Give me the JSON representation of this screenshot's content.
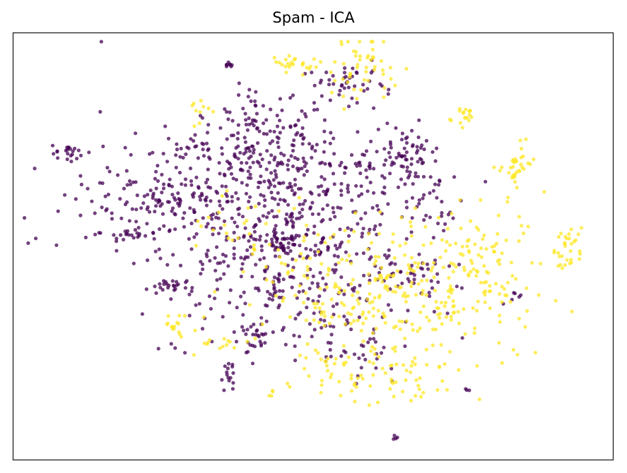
{
  "chart_data": {
    "type": "scatter",
    "title": "Spam - ICA",
    "xlabel": "",
    "ylabel": "",
    "grid": false,
    "axis_ticks": false,
    "colors": {
      "class_0": "#440154",
      "class_1": "#fde725"
    },
    "point_alpha": 0.75,
    "clusters": [
      {
        "cls": 0,
        "x": 0.33,
        "y": 0.39,
        "sx": 0.12,
        "sy": 0.09,
        "n": 280
      },
      {
        "cls": 0,
        "x": 0.51,
        "y": 0.46,
        "sx": 0.1,
        "sy": 0.1,
        "n": 230
      },
      {
        "cls": 0,
        "x": 0.45,
        "y": 0.61,
        "sx": 0.1,
        "sy": 0.08,
        "n": 170
      },
      {
        "cls": 0,
        "x": 0.42,
        "y": 0.28,
        "sx": 0.06,
        "sy": 0.04,
        "n": 70
      },
      {
        "cls": 0,
        "x": 0.55,
        "y": 0.3,
        "sx": 0.07,
        "sy": 0.05,
        "n": 70
      },
      {
        "cls": 0,
        "x": 0.65,
        "y": 0.28,
        "sx": 0.03,
        "sy": 0.03,
        "n": 45
      },
      {
        "cls": 0,
        "x": 0.56,
        "y": 0.12,
        "sx": 0.03,
        "sy": 0.03,
        "n": 45
      },
      {
        "cls": 0,
        "x": 0.39,
        "y": 0.18,
        "sx": 0.02,
        "sy": 0.03,
        "n": 30
      },
      {
        "cls": 0,
        "x": 0.09,
        "y": 0.28,
        "sx": 0.015,
        "sy": 0.012,
        "n": 22
      },
      {
        "cls": 0,
        "x": 0.19,
        "y": 0.47,
        "sx": 0.018,
        "sy": 0.008,
        "n": 20
      },
      {
        "cls": 0,
        "x": 0.25,
        "y": 0.39,
        "sx": 0.02,
        "sy": 0.02,
        "n": 30
      },
      {
        "cls": 0,
        "x": 0.26,
        "y": 0.59,
        "sx": 0.02,
        "sy": 0.01,
        "n": 20
      },
      {
        "cls": 0,
        "x": 0.4,
        "y": 0.71,
        "sx": 0.02,
        "sy": 0.02,
        "n": 25
      },
      {
        "cls": 0,
        "x": 0.36,
        "y": 0.81,
        "sx": 0.01,
        "sy": 0.02,
        "n": 15
      },
      {
        "cls": 0,
        "x": 0.45,
        "y": 0.49,
        "sx": 0.012,
        "sy": 0.012,
        "n": 30
      },
      {
        "cls": 0,
        "x": 0.7,
        "y": 0.38,
        "sx": 0.03,
        "sy": 0.04,
        "n": 35
      },
      {
        "cls": 0,
        "x": 0.68,
        "y": 0.58,
        "sx": 0.03,
        "sy": 0.03,
        "n": 25
      },
      {
        "cls": 0,
        "x": 0.59,
        "y": 0.76,
        "sx": 0.03,
        "sy": 0.03,
        "n": 25
      },
      {
        "cls": 0,
        "x": 0.305,
        "y": 0.26,
        "sx": 0.02,
        "sy": 0.03,
        "n": 20
      },
      {
        "cls": 0,
        "x": 0.47,
        "y": 0.21,
        "sx": 0.03,
        "sy": 0.03,
        "n": 25
      },
      {
        "cls": 0,
        "x": 0.36,
        "y": 0.07,
        "sx": 0.003,
        "sy": 0.003,
        "n": 8
      },
      {
        "cls": 0,
        "x": 0.635,
        "y": 0.95,
        "sx": 0.002,
        "sy": 0.006,
        "n": 4
      },
      {
        "cls": 0,
        "x": 0.76,
        "y": 0.84,
        "sx": 0.002,
        "sy": 0.002,
        "n": 3
      },
      {
        "cls": 0,
        "x": 0.84,
        "y": 0.62,
        "sx": 0.01,
        "sy": 0.01,
        "n": 6
      },
      {
        "cls": 1,
        "x": 0.66,
        "y": 0.63,
        "sx": 0.11,
        "sy": 0.09,
        "n": 230
      },
      {
        "cls": 1,
        "x": 0.79,
        "y": 0.52,
        "sx": 0.04,
        "sy": 0.06,
        "n": 70
      },
      {
        "cls": 1,
        "x": 0.57,
        "y": 0.57,
        "sx": 0.08,
        "sy": 0.07,
        "n": 80
      },
      {
        "cls": 1,
        "x": 0.58,
        "y": 0.08,
        "sx": 0.03,
        "sy": 0.04,
        "n": 50
      },
      {
        "cls": 1,
        "x": 0.47,
        "y": 0.07,
        "sx": 0.02,
        "sy": 0.01,
        "n": 25
      },
      {
        "cls": 1,
        "x": 0.84,
        "y": 0.32,
        "sx": 0.012,
        "sy": 0.03,
        "n": 35
      },
      {
        "cls": 1,
        "x": 0.93,
        "y": 0.5,
        "sx": 0.012,
        "sy": 0.03,
        "n": 30
      },
      {
        "cls": 1,
        "x": 0.75,
        "y": 0.19,
        "sx": 0.01,
        "sy": 0.01,
        "n": 18
      },
      {
        "cls": 1,
        "x": 0.27,
        "y": 0.69,
        "sx": 0.01,
        "sy": 0.015,
        "n": 15
      },
      {
        "cls": 1,
        "x": 0.31,
        "y": 0.19,
        "sx": 0.01,
        "sy": 0.015,
        "n": 10
      },
      {
        "cls": 1,
        "x": 0.43,
        "y": 0.85,
        "sx": 0.002,
        "sy": 0.01,
        "n": 4
      },
      {
        "cls": 1,
        "x": 0.6,
        "y": 0.8,
        "sx": 0.07,
        "sy": 0.05,
        "n": 70
      },
      {
        "cls": 1,
        "x": 0.34,
        "y": 0.72,
        "sx": 0.02,
        "sy": 0.02,
        "n": 15
      },
      {
        "cls": 1,
        "x": 0.38,
        "y": 0.47,
        "sx": 0.04,
        "sy": 0.05,
        "n": 30
      }
    ]
  }
}
